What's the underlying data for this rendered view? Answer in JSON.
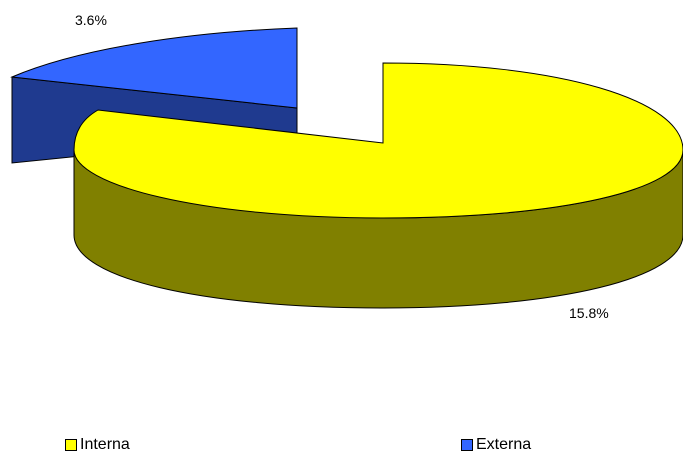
{
  "chart_data": {
    "type": "pie",
    "style": "3d-exploded",
    "title": "",
    "slices": [
      {
        "name": "Interna",
        "value": 15.8,
        "label": "15.8%",
        "color": "#FFFF00",
        "side_color": "#808000"
      },
      {
        "name": "Externa",
        "value": 3.6,
        "label": "3.6%",
        "color": "#3366FF",
        "side_color": "#1F3A8F"
      }
    ],
    "legend": {
      "position": "bottom"
    }
  }
}
